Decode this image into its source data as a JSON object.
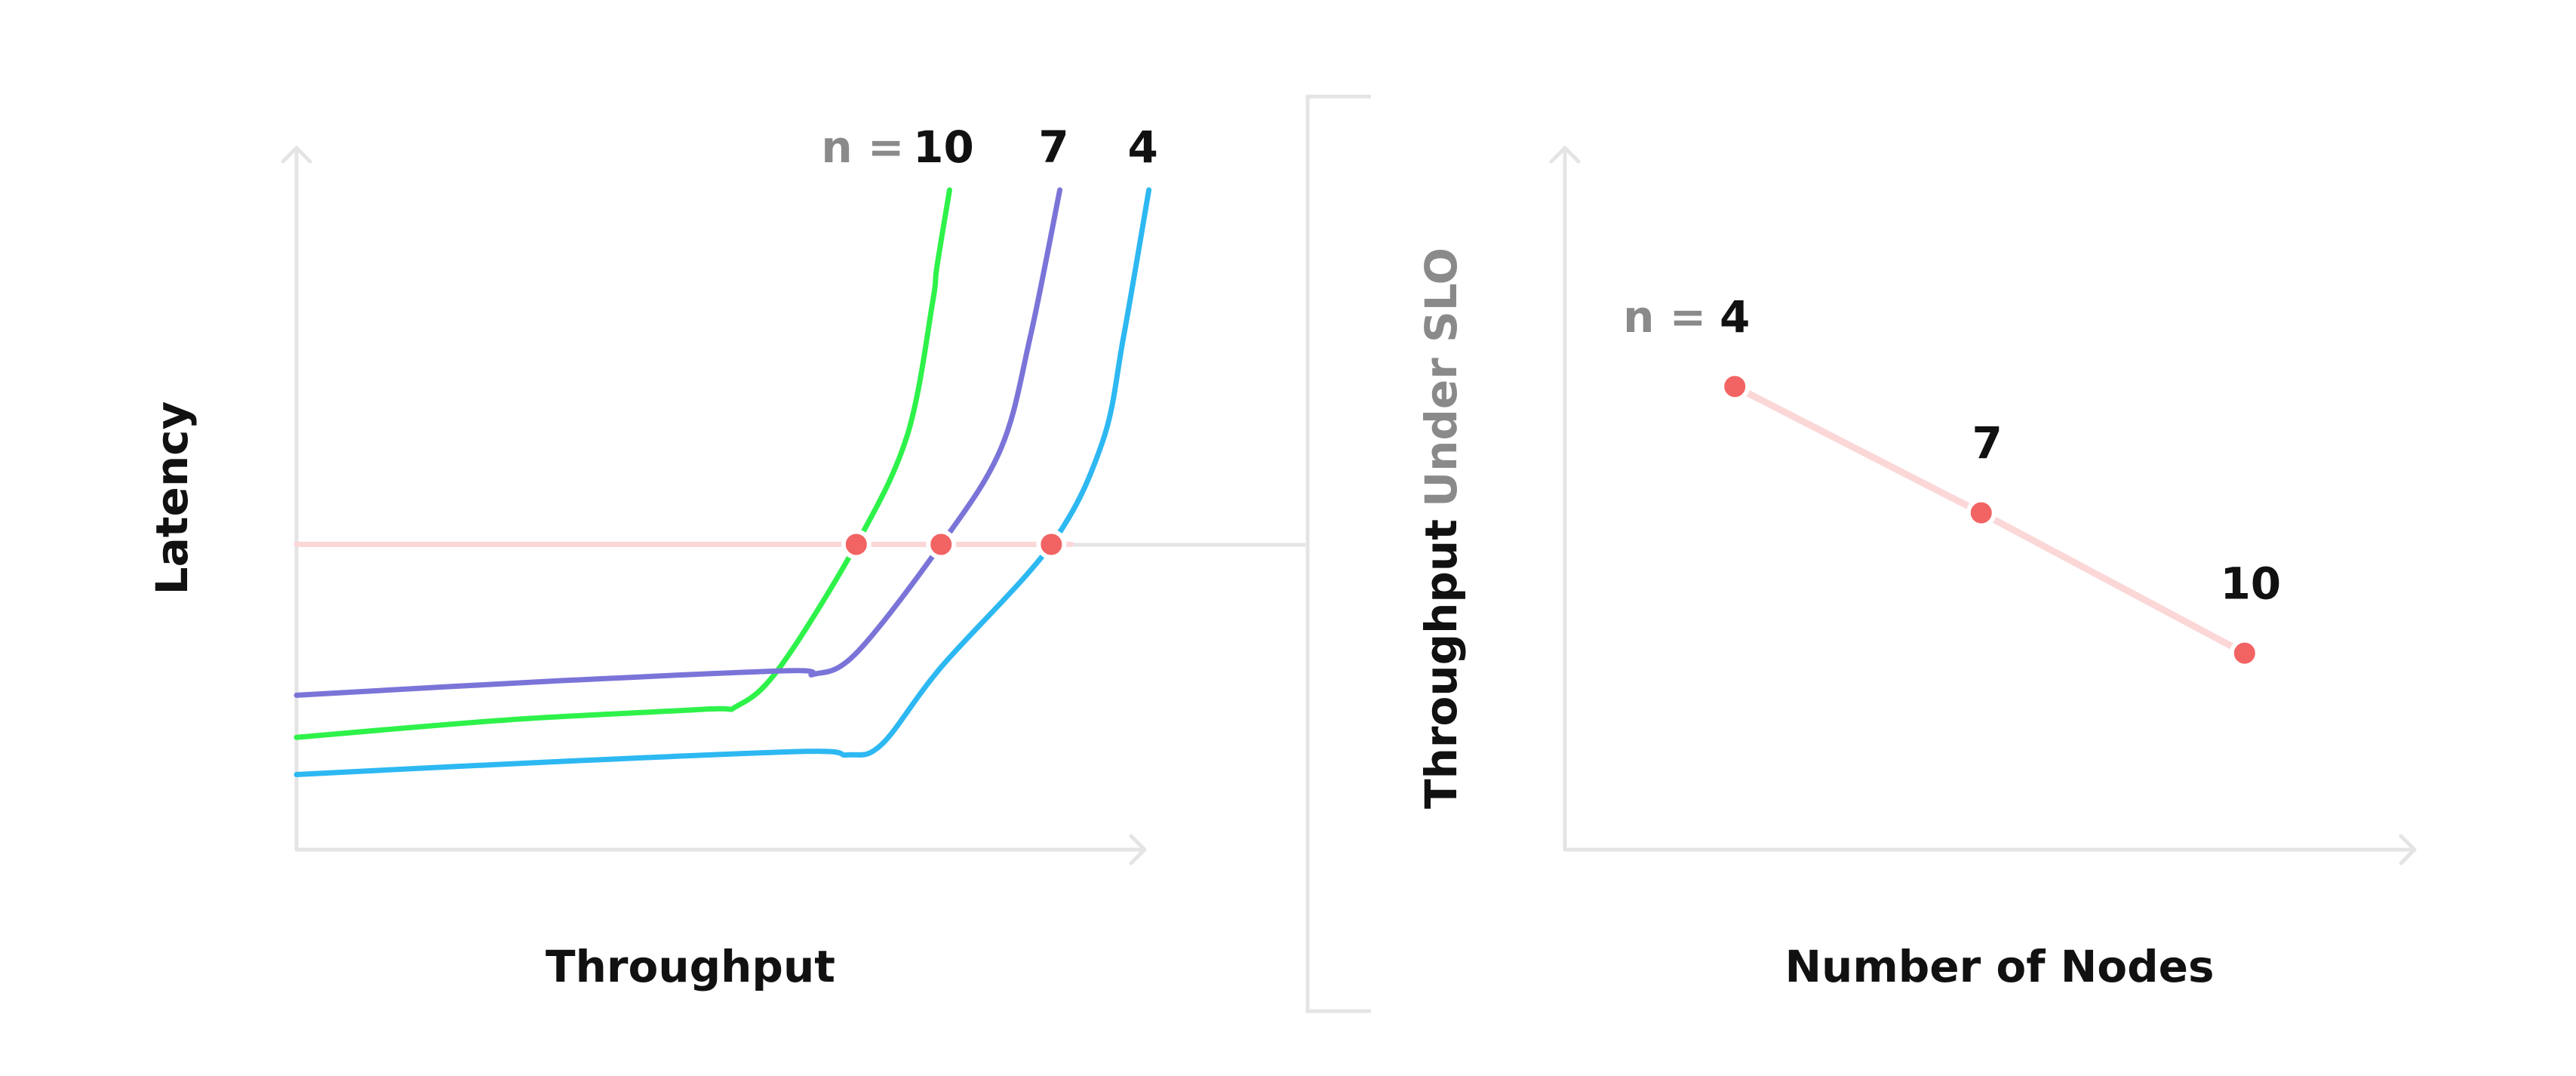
{
  "colors": {
    "axis": "#e4e4e4",
    "slo": "#fbd7d7",
    "point": "#f26363",
    "dark_text": "#111111",
    "grey_text": "#8a8a8a"
  },
  "chart_data": [
    {
      "type": "line",
      "xlabel": "Throughput",
      "ylabel": "Latency",
      "x_ticks": false,
      "y_ticks": false,
      "grid": false,
      "legend": "inline labels above curve tops",
      "legend_prefix": "n =",
      "slo_line": {
        "y": 0.435
      },
      "series": [
        {
          "name": "10",
          "color": "#2ef24a",
          "points": [
            [
              0,
              0.16
            ],
            [
              0.25,
              0.185
            ],
            [
              0.48,
              0.2
            ],
            [
              0.52,
              0.205
            ],
            [
              0.57,
              0.26
            ],
            [
              0.66,
              0.435
            ],
            [
              0.72,
              0.59
            ],
            [
              0.75,
              0.78
            ],
            [
              0.755,
              0.83
            ],
            [
              0.77,
              0.94
            ]
          ]
        },
        {
          "name": "7",
          "color": "#7b74d8",
          "points": [
            [
              0,
              0.22
            ],
            [
              0.3,
              0.24
            ],
            [
              0.58,
              0.255
            ],
            [
              0.61,
              0.25
            ],
            [
              0.66,
              0.28
            ],
            [
              0.76,
              0.435
            ],
            [
              0.83,
              0.57
            ],
            [
              0.865,
              0.73
            ],
            [
              0.9,
              0.94
            ]
          ]
        },
        {
          "name": "4",
          "color": "#2db8f2",
          "points": [
            [
              0,
              0.107
            ],
            [
              0.3,
              0.125
            ],
            [
              0.6,
              0.14
            ],
            [
              0.65,
              0.135
            ],
            [
              0.69,
              0.15
            ],
            [
              0.76,
              0.26
            ],
            [
              0.89,
              0.435
            ],
            [
              0.95,
              0.58
            ],
            [
              0.975,
              0.73
            ],
            [
              1.005,
              0.94
            ]
          ]
        }
      ],
      "slo_intersections": [
        {
          "series": "10",
          "x": 0.66,
          "y": 0.435
        },
        {
          "series": "7",
          "x": 0.76,
          "y": 0.435
        },
        {
          "series": "4",
          "x": 0.89,
          "y": 0.435
        }
      ]
    },
    {
      "type": "line",
      "xlabel": "Number of Nodes",
      "ylabel": "Throughput Under SLO",
      "ylabel_parts": [
        "Throughput",
        "Under SLO"
      ],
      "x_ticks": false,
      "y_ticks": false,
      "grid": false,
      "legend": "none",
      "point_prefix": "n =",
      "points": [
        {
          "label": "4",
          "x": 0.2,
          "y": 0.66
        },
        {
          "label": "7",
          "x": 0.49,
          "y": 0.48
        },
        {
          "label": "10",
          "x": 0.8,
          "y": 0.28
        }
      ]
    }
  ]
}
